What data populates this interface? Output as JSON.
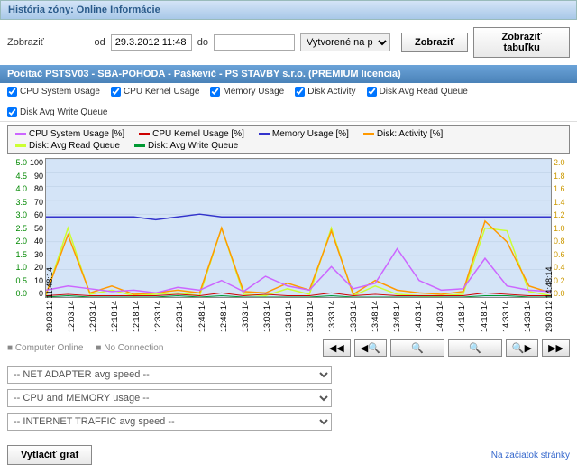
{
  "header": {
    "title": "História zóny: Online Informácie"
  },
  "filter": {
    "show_label": "Zobraziť",
    "from_label": "od",
    "from_value": "29.3.2012 11:48",
    "to_label": "do",
    "to_value": "",
    "created_label": "Vytvorené na počítači",
    "btn_show": "Zobraziť",
    "btn_table": "Zobraziť tabuľku"
  },
  "subheader": "Počítač PSTSV03 - SBA-POHODA - Paškevič - PS STAVBY s.r.o. (PREMIUM licencia)",
  "checks": {
    "c1": "CPU System Usage",
    "c2": "CPU Kernel Usage",
    "c3": "Memory Usage",
    "c4": "Disk Activity",
    "c5": "Disk Avg Read Queue",
    "c6": "Disk Avg Write Queue"
  },
  "legend": {
    "i1": {
      "label": "CPU System Usage [%]",
      "color": "#cc66ff"
    },
    "i2": {
      "label": "CPU Kernel Usage [%]",
      "color": "#cc0000"
    },
    "i3": {
      "label": "Memory Usage [%]",
      "color": "#3333cc"
    },
    "i4": {
      "label": "Disk: Activity [%]",
      "color": "#ff9900"
    },
    "i5": {
      "label": "Disk: Avg Read Queue",
      "color": "#ccff33"
    },
    "i6": {
      "label": "Disk: Avg Write Queue",
      "color": "#009933"
    }
  },
  "chart": {
    "bg": "#d4e4f7",
    "grid_color": "#b8cce0",
    "y_left1": {
      "color": "#008800",
      "min": 0,
      "max": 5.0,
      "step": 0.5
    },
    "y_left2": {
      "color": "#000000",
      "min": 0,
      "max": 100,
      "step": 10
    },
    "y_right": {
      "color": "#cc9900",
      "min": 0,
      "max": 2.0,
      "step": 0.2
    },
    "x_labels": [
      "29.03.12 11:48:14",
      "12:03:14",
      "12:03:14",
      "12:18:14",
      "12:18:14",
      "12:33:14",
      "12:33:14",
      "12:48:14",
      "12:48:14",
      "13:03:14",
      "13:03:14",
      "13:18:14",
      "13:18:14",
      "13:33:14",
      "13:33:14",
      "13:48:14",
      "13:48:14",
      "14:03:14",
      "14:03:14",
      "14:18:14",
      "14:18:14",
      "14:33:14",
      "14:33:14",
      "29.03.12 14:48:14"
    ],
    "series": {
      "memory": {
        "color": "#3333cc",
        "data": [
          58,
          58,
          58,
          58,
          58,
          56,
          58,
          60,
          58,
          58,
          58,
          58,
          58,
          58,
          58,
          58,
          58,
          58,
          58,
          58,
          58,
          58,
          58,
          58
        ]
      },
      "cpu_sys": {
        "color": "#cc66ff",
        "data": [
          5,
          8,
          6,
          4,
          5,
          3,
          7,
          5,
          12,
          4,
          15,
          8,
          5,
          22,
          6,
          10,
          35,
          12,
          5,
          6,
          28,
          8,
          5,
          4
        ]
      },
      "disk_act": {
        "color": "#ff9900",
        "data": [
          2,
          45,
          3,
          8,
          2,
          3,
          5,
          3,
          50,
          4,
          3,
          10,
          5,
          48,
          2,
          12,
          5,
          3,
          2,
          4,
          55,
          40,
          8,
          3
        ]
      },
      "read_q": {
        "color": "#ccff33",
        "data": [
          1,
          50,
          2,
          5,
          1,
          2,
          3,
          1,
          50,
          2,
          1,
          6,
          2,
          50,
          1,
          8,
          2,
          1,
          1,
          2,
          50,
          48,
          4,
          1
        ]
      },
      "kernel": {
        "color": "#cc0000",
        "data": [
          1,
          2,
          1,
          1,
          1,
          1,
          2,
          1,
          3,
          1,
          2,
          1,
          1,
          3,
          1,
          2,
          1,
          1,
          1,
          1,
          3,
          2,
          1,
          1
        ]
      },
      "write_q": {
        "color": "#009933",
        "data": [
          0,
          1,
          0,
          0,
          0,
          0,
          1,
          0,
          1,
          0,
          0,
          0,
          0,
          1,
          0,
          0,
          0,
          0,
          0,
          0,
          1,
          1,
          0,
          0
        ]
      }
    }
  },
  "status": {
    "online": "Computer Online",
    "noconn": "No Connection"
  },
  "nav": {
    "b1": "⏮◀",
    "b2": "◀🔍",
    "b3": "🔍+",
    "b4": "🔍−",
    "b5": "🔍▶",
    "b6": "▶⏭"
  },
  "dropdowns": {
    "d1": "-- NET ADAPTER avg speed --",
    "d2": "-- CPU and MEMORY usage --",
    "d3": "-- INTERNET TRAFFIC avg speed --"
  },
  "footer": {
    "print": "Vytlačiť graf",
    "top": "Na začiatok stránky"
  }
}
